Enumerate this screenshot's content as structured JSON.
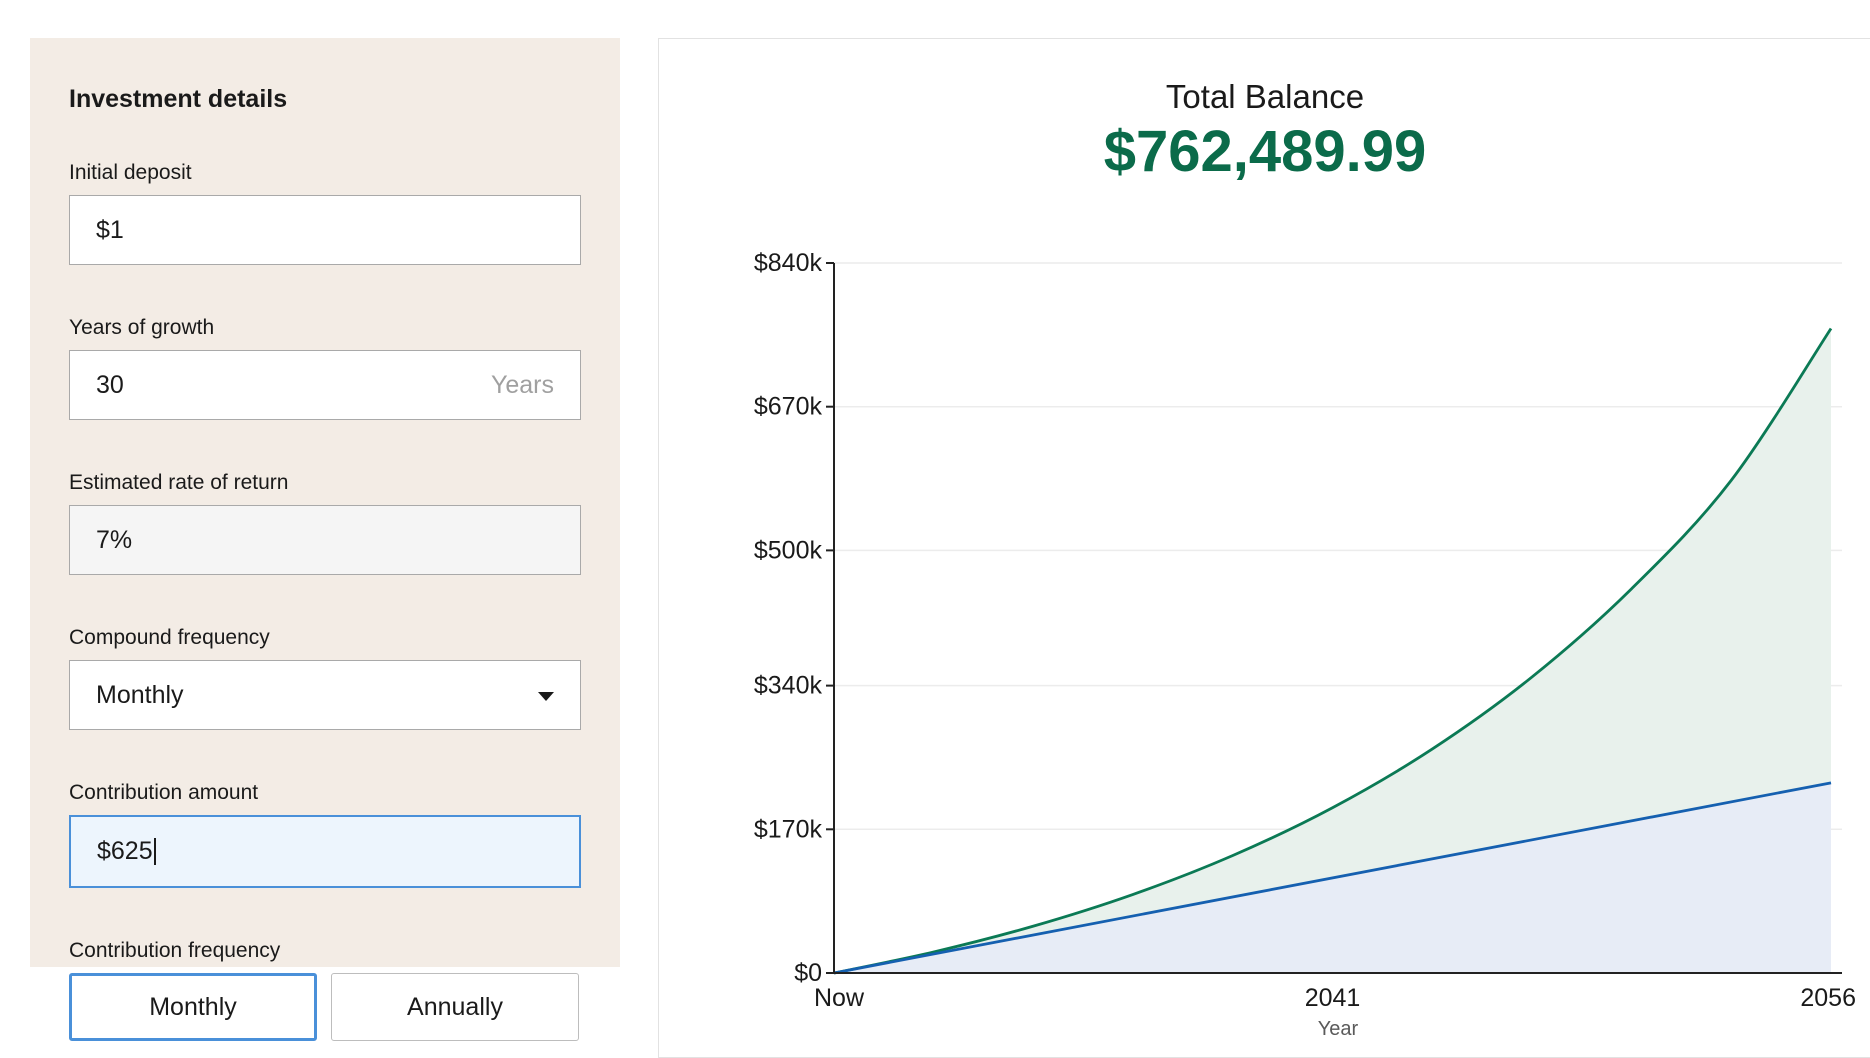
{
  "form": {
    "title": "Investment details",
    "initial_deposit": {
      "label": "Initial deposit",
      "value": "$1"
    },
    "years": {
      "label": "Years of growth",
      "value": "30",
      "suffix": "Years"
    },
    "rate": {
      "label": "Estimated rate of return",
      "value": "7%"
    },
    "compound": {
      "label": "Compound frequency",
      "selected": "Monthly"
    },
    "contribution": {
      "label": "Contribution amount",
      "value": "$625"
    },
    "contribution_freq": {
      "label": "Contribution frequency",
      "options": [
        "Monthly",
        "Annually"
      ],
      "selected": "Monthly"
    }
  },
  "summary": {
    "label": "Total Balance",
    "value": "$762,489.99"
  },
  "colors": {
    "total_line": "#0b7a55",
    "total_fill": "#e8f1ec",
    "contrib_line": "#1560b0",
    "contrib_fill": "#e7ecf6",
    "accent": "#4a90d9"
  },
  "chart_data": {
    "type": "area",
    "x_tick_labels": [
      "Now",
      "2041",
      "2056"
    ],
    "x_start_year": 2026,
    "xlabel": "Year",
    "ylabel": "",
    "ylim": [
      0,
      840000
    ],
    "y_ticks": [
      0,
      170000,
      340000,
      500000,
      670000,
      840000
    ],
    "y_tick_labels": [
      "$0",
      "$170k",
      "$340k",
      "$500k",
      "$670k",
      "$840k"
    ],
    "grid": true,
    "series": [
      {
        "key": "total",
        "x": [
          0,
          3,
          6,
          9,
          12,
          15,
          18,
          21,
          24,
          27,
          30
        ],
        "values": [
          0,
          24901,
          55464,
          92980,
          139026,
          195551,
          264935,
          350102,
          454646,
          582976,
          762490
        ]
      },
      {
        "key": "contributions",
        "x": [
          0,
          30
        ],
        "values": [
          1,
          225001
        ]
      }
    ]
  }
}
